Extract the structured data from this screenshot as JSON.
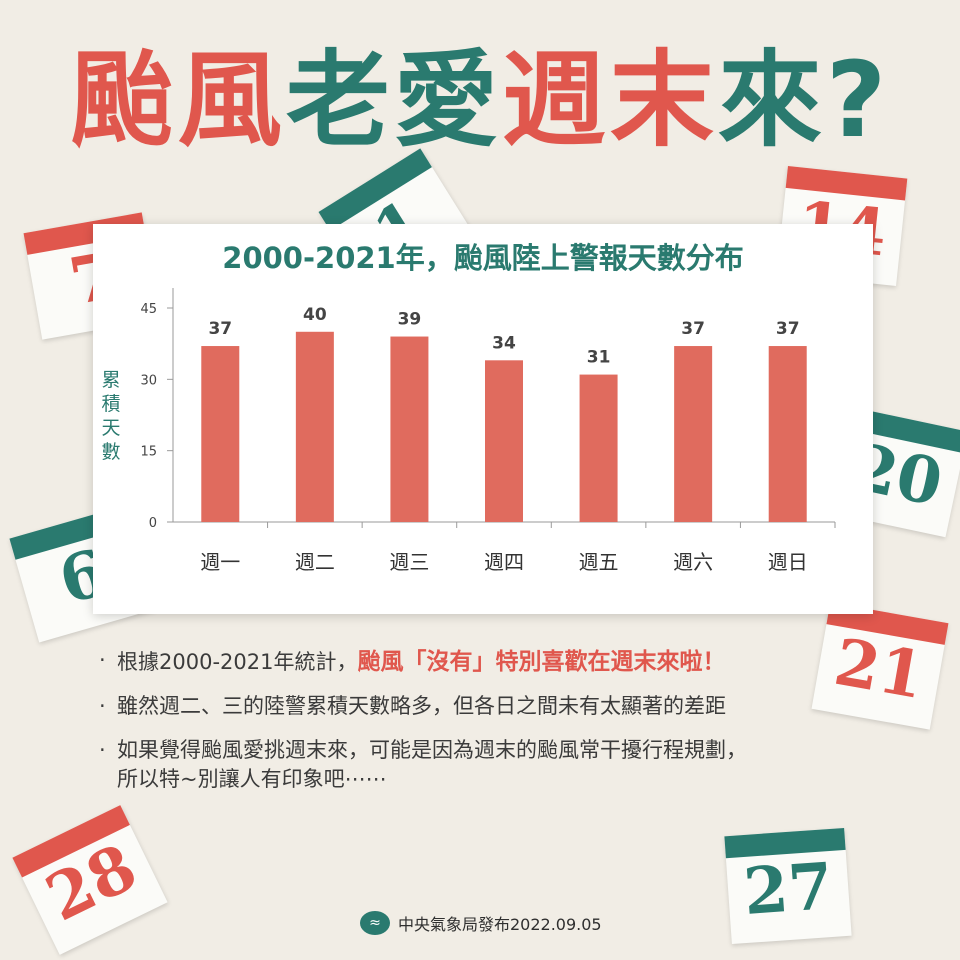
{
  "headline": {
    "part1": "颱風",
    "part2": "老愛",
    "part3": "週末",
    "part4": "來?"
  },
  "colors": {
    "red": "#e0574d",
    "green": "#2a7a6f",
    "bar": "#e06b5e",
    "background": "#f1ede5"
  },
  "calendars": [
    "7",
    "1",
    "14",
    "6",
    "20",
    "21",
    "28",
    "27"
  ],
  "chart_data": {
    "type": "bar",
    "title": "2000-2021年，颱風陸上警報天數分布",
    "ylabel": "累積天數",
    "xlabel": "",
    "categories": [
      "週一",
      "週二",
      "週三",
      "週四",
      "週五",
      "週六",
      "週日"
    ],
    "values": [
      37,
      40,
      39,
      34,
      31,
      37,
      37
    ],
    "ylim": [
      0,
      45
    ],
    "yticks": [
      0,
      15,
      30,
      45
    ],
    "grid": false,
    "data_labels": true
  },
  "bullets": {
    "b1_prefix": "根據2000-2021年統計，",
    "b1_accent": "颱風「沒有」特別喜歡在週末來啦！",
    "b2": "雖然週二、三的陸警累積天數略多，但各日之間未有太顯著的差距",
    "b3_line1": "如果覺得颱風愛挑週末來，可能是因為週末的颱風常干擾行程規劃，",
    "b3_line2": "所以特~別讓人有印象吧⋯⋯",
    "dot": "·"
  },
  "footer": {
    "text": "中央氣象局發布2022.09.05",
    "logo_icon": "cwb-logo-icon"
  }
}
